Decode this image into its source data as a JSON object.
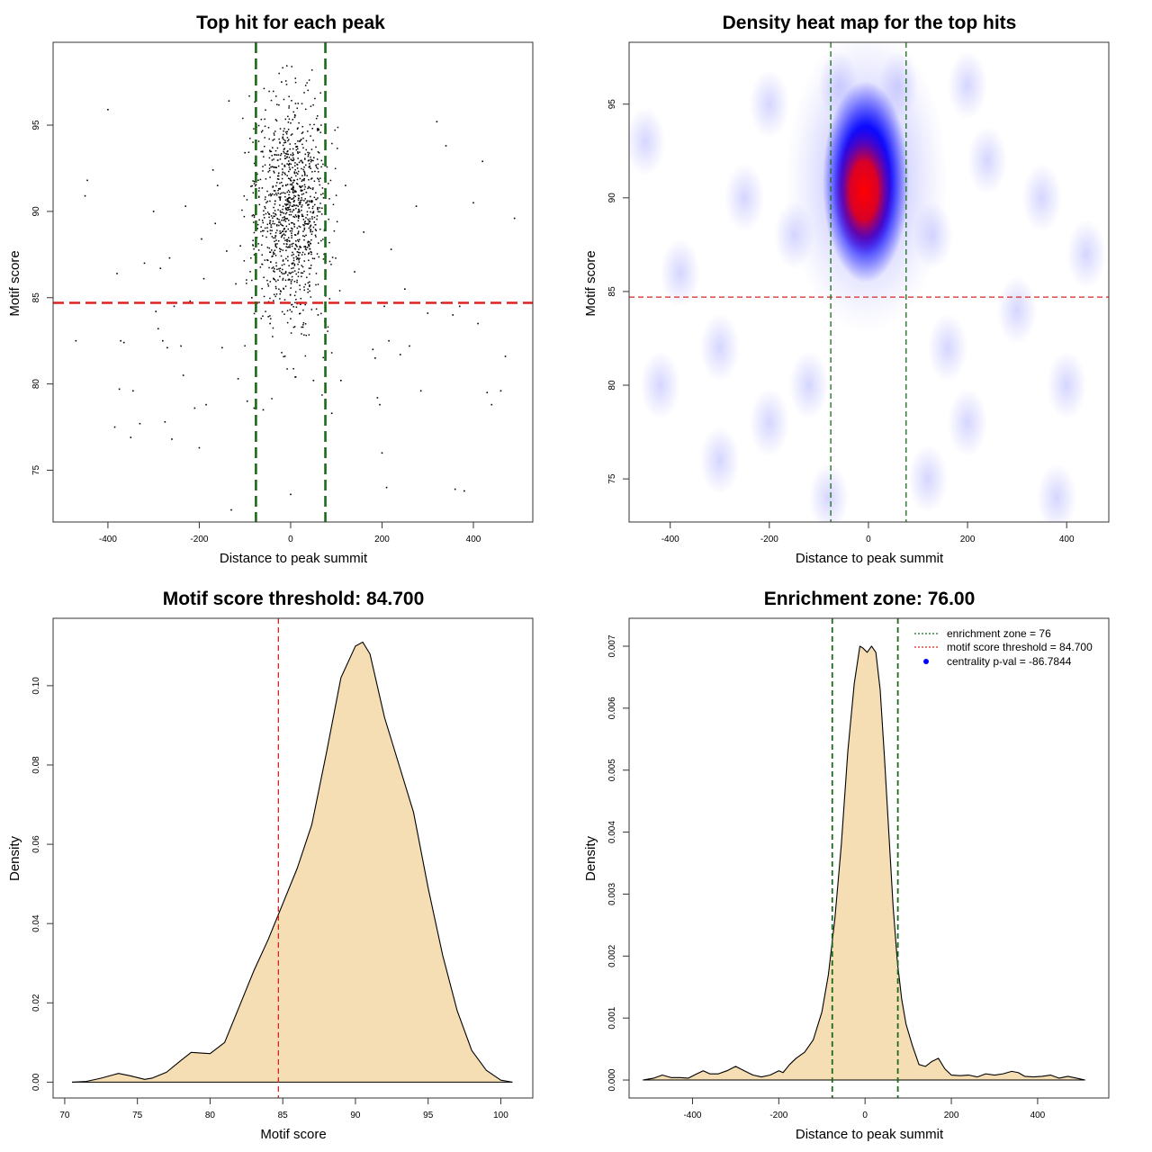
{
  "chart_data": [
    {
      "type": "scatter",
      "title": "Top hit for each peak",
      "xlabel": "Distance to peak summit",
      "ylabel": "Motif score",
      "xlim": [
        -520,
        530
      ],
      "ylim": [
        72,
        99.8
      ],
      "xticks": [
        -400,
        -200,
        0,
        200,
        400
      ],
      "yticks": [
        75,
        80,
        85,
        90,
        95
      ],
      "hlines": [
        {
          "y": 84.7,
          "color": "#dd2222",
          "style": "dashed"
        }
      ],
      "vlines": [
        {
          "x": -76,
          "color": "#1a6b1a",
          "style": "dashed"
        },
        {
          "x": 76,
          "color": "#1a6b1a",
          "style": "dashed"
        }
      ],
      "points": [
        [
          -470,
          82.5
        ],
        [
          -450,
          90.9
        ],
        [
          -445,
          91.8
        ],
        [
          -400,
          95.9
        ],
        [
          -385,
          77.5
        ],
        [
          -380,
          86.4
        ],
        [
          -375,
          79.7
        ],
        [
          -372,
          82.5
        ],
        [
          -365,
          82.4
        ],
        [
          -350,
          76.9
        ],
        [
          -345,
          79.6
        ],
        [
          -330,
          77.7
        ],
        [
          -320,
          87.0
        ],
        [
          -300,
          90.0
        ],
        [
          -295,
          84.2
        ],
        [
          -290,
          83.2
        ],
        [
          -285,
          86.7
        ],
        [
          -280,
          82.5
        ],
        [
          -275,
          77.8
        ],
        [
          -270,
          82.1
        ],
        [
          -265,
          87.3
        ],
        [
          -260,
          76.8
        ],
        [
          -255,
          84.5
        ],
        [
          -240,
          82.2
        ],
        [
          -235,
          80.5
        ],
        [
          -230,
          90.3
        ],
        [
          -220,
          84.8
        ],
        [
          -210,
          78.6
        ],
        [
          -200,
          76.3
        ],
        [
          -195,
          88.4
        ],
        [
          -190,
          86.1
        ],
        [
          -185,
          78.8
        ],
        [
          -170,
          92.4
        ],
        [
          -165,
          89.3
        ],
        [
          -160,
          91.5
        ],
        [
          -150,
          82.1
        ],
        [
          -140,
          87.7
        ],
        [
          -135,
          96.4
        ],
        [
          -130,
          72.7
        ],
        [
          -120,
          85.8
        ],
        [
          -115,
          80.3
        ],
        [
          -110,
          88.0
        ],
        [
          -100,
          93.4
        ],
        [
          -95,
          79.0
        ],
        [
          -85,
          85.0
        ],
        [
          -80,
          78.6
        ],
        [
          -60,
          78.5
        ],
        [
          -45,
          83.5
        ],
        [
          -20,
          97.5
        ],
        [
          0,
          73.6
        ],
        [
          10,
          80.4
        ],
        [
          50,
          80.2
        ],
        [
          60,
          84.0
        ],
        [
          90,
          78.3
        ],
        [
          110,
          80.2
        ],
        [
          120,
          91.5
        ],
        [
          140,
          86.5
        ],
        [
          160,
          88.8
        ],
        [
          180,
          82.0
        ],
        [
          185,
          81.5
        ],
        [
          190,
          79.2
        ],
        [
          195,
          78.8
        ],
        [
          200,
          76.0
        ],
        [
          205,
          84.5
        ],
        [
          210,
          74.0
        ],
        [
          215,
          82.5
        ],
        [
          220,
          87.8
        ],
        [
          240,
          81.7
        ],
        [
          250,
          85.5
        ],
        [
          260,
          82.2
        ],
        [
          275,
          90.3
        ],
        [
          285,
          79.6
        ],
        [
          300,
          84.1
        ],
        [
          320,
          95.2
        ],
        [
          330,
          84.7
        ],
        [
          340,
          93.8
        ],
        [
          355,
          84.0
        ],
        [
          360,
          73.9
        ],
        [
          370,
          84.5
        ],
        [
          380,
          73.8
        ],
        [
          400,
          90.5
        ],
        [
          410,
          83.5
        ],
        [
          420,
          92.9
        ],
        [
          430,
          79.5
        ],
        [
          440,
          78.8
        ],
        [
          460,
          79.6
        ],
        [
          470,
          81.6
        ],
        [
          490,
          89.6
        ]
      ]
    },
    {
      "type": "heatmap",
      "title": "Density heat map for the top hits",
      "xlabel": "Distance to peak summit",
      "ylabel": "Motif score",
      "xlim": [
        -483,
        485
      ],
      "ylim": [
        72.7,
        98.3
      ],
      "xticks": [
        -400,
        -200,
        0,
        200,
        400
      ],
      "yticks": [
        75,
        80,
        85,
        90,
        95
      ],
      "hlines": [
        {
          "y": 84.7,
          "color": "#dd2222",
          "style": "dashed"
        }
      ],
      "vlines": [
        {
          "x": -76,
          "color": "#1a6b1a",
          "style": "dashed"
        },
        {
          "x": 76,
          "color": "#1a6b1a",
          "style": "dashed"
        }
      ],
      "colors": [
        "#ffffff",
        "#0000ff",
        "#ff0000"
      ],
      "peak": {
        "x": -5,
        "y": 90
      }
    },
    {
      "type": "area",
      "title": "Motif score threshold: 84.700",
      "xlabel": "Motif score",
      "ylabel": "Density",
      "xlim": [
        69.2,
        102.2
      ],
      "ylim": [
        -0.004,
        0.117
      ],
      "xticks": [
        70,
        75,
        80,
        85,
        90,
        95,
        100
      ],
      "yticks": [
        0.0,
        0.02,
        0.04,
        0.06,
        0.08,
        0.1
      ],
      "ytick_labels": [
        "0.00",
        "0.02",
        "0.04",
        "0.06",
        "0.08",
        "0.10"
      ],
      "fill": "#f5deb3",
      "vlines": [
        {
          "x": 84.7,
          "color": "#dd2222",
          "style": "dashed"
        }
      ],
      "x": [
        70.5,
        71.5,
        72.5,
        73.0,
        73.7,
        74.5,
        75.5,
        76.0,
        77.0,
        78.0,
        78.7,
        79.5,
        80.0,
        81.0,
        82.0,
        83.0,
        84.0,
        85.0,
        86.0,
        87.0,
        88.0,
        89.0,
        90.0,
        90.5,
        91.0,
        92.0,
        93.0,
        94.0,
        95.0,
        96.0,
        97.0,
        98.0,
        99.0,
        100.0,
        100.8
      ],
      "y": [
        0.0,
        0.0002,
        0.001,
        0.0015,
        0.0022,
        0.0016,
        0.0007,
        0.001,
        0.0025,
        0.0055,
        0.0075,
        0.0073,
        0.0072,
        0.01,
        0.019,
        0.028,
        0.036,
        0.045,
        0.054,
        0.065,
        0.083,
        0.102,
        0.11,
        0.111,
        0.108,
        0.092,
        0.08,
        0.068,
        0.049,
        0.032,
        0.018,
        0.008,
        0.003,
        0.0005,
        0.0
      ]
    },
    {
      "type": "area",
      "title": "Enrichment zone: 76.00",
      "xlabel": "Distance to peak summit",
      "ylabel": "Density",
      "xlim": [
        -547,
        565
      ],
      "ylim": [
        -0.00029,
        0.00745
      ],
      "xticks": [
        -400,
        -200,
        0,
        200,
        400
      ],
      "yticks": [
        0.0,
        0.001,
        0.002,
        0.003,
        0.004,
        0.005,
        0.006,
        0.007
      ],
      "ytick_labels": [
        "0.000",
        "0.001",
        "0.002",
        "0.003",
        "0.004",
        "0.005",
        "0.006",
        "0.007"
      ],
      "fill": "#f5deb3",
      "vlines": [
        {
          "x": -76,
          "color": "#1a6b1a",
          "style": "dashed"
        },
        {
          "x": 76,
          "color": "#1a6b1a",
          "style": "dashed"
        }
      ],
      "x": [
        -515,
        -490,
        -470,
        -450,
        -430,
        -410,
        -390,
        -375,
        -360,
        -340,
        -320,
        -300,
        -280,
        -260,
        -240,
        -220,
        -200,
        -190,
        -175,
        -160,
        -140,
        -120,
        -100,
        -85,
        -70,
        -55,
        -40,
        -25,
        -12,
        -5,
        5,
        15,
        25,
        35,
        45,
        55,
        65,
        75,
        85,
        95,
        110,
        125,
        140,
        155,
        170,
        185,
        200,
        220,
        240,
        260,
        280,
        300,
        320,
        340,
        355,
        370,
        390,
        410,
        430,
        450,
        470,
        490,
        510
      ],
      "y": [
        0.0,
        3e-05,
        8e-05,
        4e-05,
        4e-05,
        3e-05,
        0.0001,
        0.00015,
        0.0001,
        0.0001,
        0.00015,
        0.00022,
        0.00015,
        8e-05,
        5e-05,
        8e-05,
        0.00015,
        0.00012,
        0.00025,
        0.00035,
        0.00045,
        0.00065,
        0.0011,
        0.0017,
        0.0026,
        0.0038,
        0.0053,
        0.0064,
        0.007,
        0.00697,
        0.0069,
        0.007,
        0.0069,
        0.0063,
        0.0052,
        0.004,
        0.0028,
        0.0019,
        0.0013,
        0.0009,
        0.00055,
        0.00025,
        0.00022,
        0.0003,
        0.00035,
        0.00018,
        8e-05,
        7e-05,
        8e-05,
        5e-05,
        0.0001,
        8e-05,
        0.0001,
        0.00014,
        0.00012,
        6e-05,
        5e-05,
        6e-05,
        8e-05,
        3e-05,
        6e-05,
        3e-05,
        0.0
      ],
      "legend": [
        {
          "label": "enrichment zone = 76",
          "color": "#1a6b1a",
          "style": "dotted"
        },
        {
          "label": "motif score threshold = 84.700",
          "color": "#dd2222",
          "style": "dotted"
        },
        {
          "label": "centrality p-val = -86.7844",
          "color": "#0000ff",
          "style": "point"
        }
      ],
      "legend_position": "top-right"
    }
  ]
}
